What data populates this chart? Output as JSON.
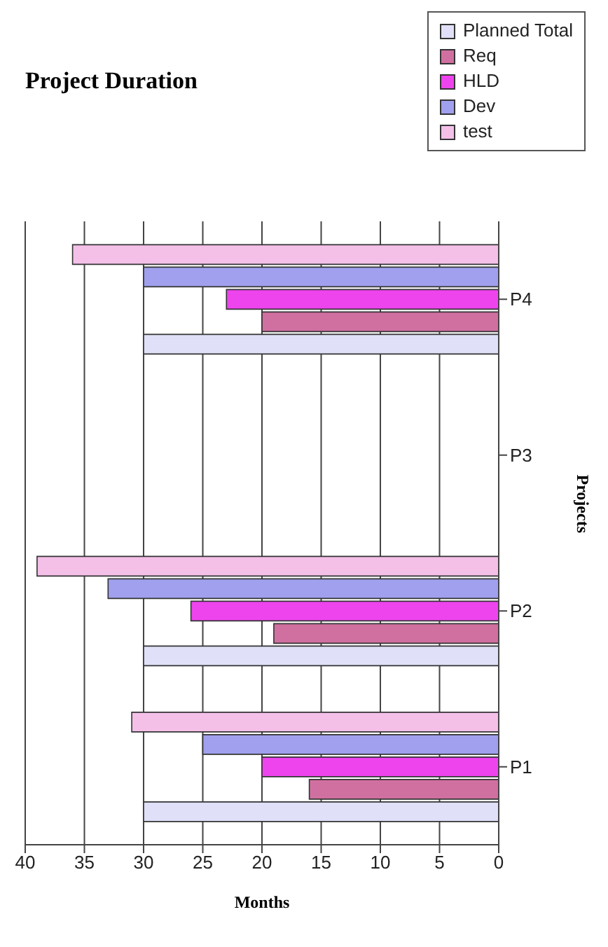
{
  "chart_data": {
    "type": "bar",
    "orientation": "horizontal",
    "title": "Project Duration",
    "xlabel": "Months",
    "ylabel": "Projects",
    "categories": [
      "P4",
      "P3",
      "P2",
      "P1"
    ],
    "series": [
      {
        "name": "Planned Total",
        "color": "#e0e0f8",
        "values": [
          30,
          0,
          30,
          30
        ]
      },
      {
        "name": "Req",
        "color": "#d070a0",
        "values": [
          20,
          0,
          19,
          16
        ]
      },
      {
        "name": "HLD",
        "color": "#ee44ee",
        "values": [
          23,
          0,
          26,
          20
        ]
      },
      {
        "name": "Dev",
        "color": "#a0a0ee",
        "values": [
          30,
          0,
          33,
          25
        ]
      },
      {
        "name": "test",
        "color": "#f4c0e8",
        "values": [
          36,
          0,
          39,
          31
        ]
      }
    ],
    "xlim": [
      40,
      0
    ],
    "xticks": [
      40,
      35,
      30,
      25,
      20,
      15,
      10,
      5,
      0
    ],
    "grid": "x",
    "legend": "top right"
  }
}
